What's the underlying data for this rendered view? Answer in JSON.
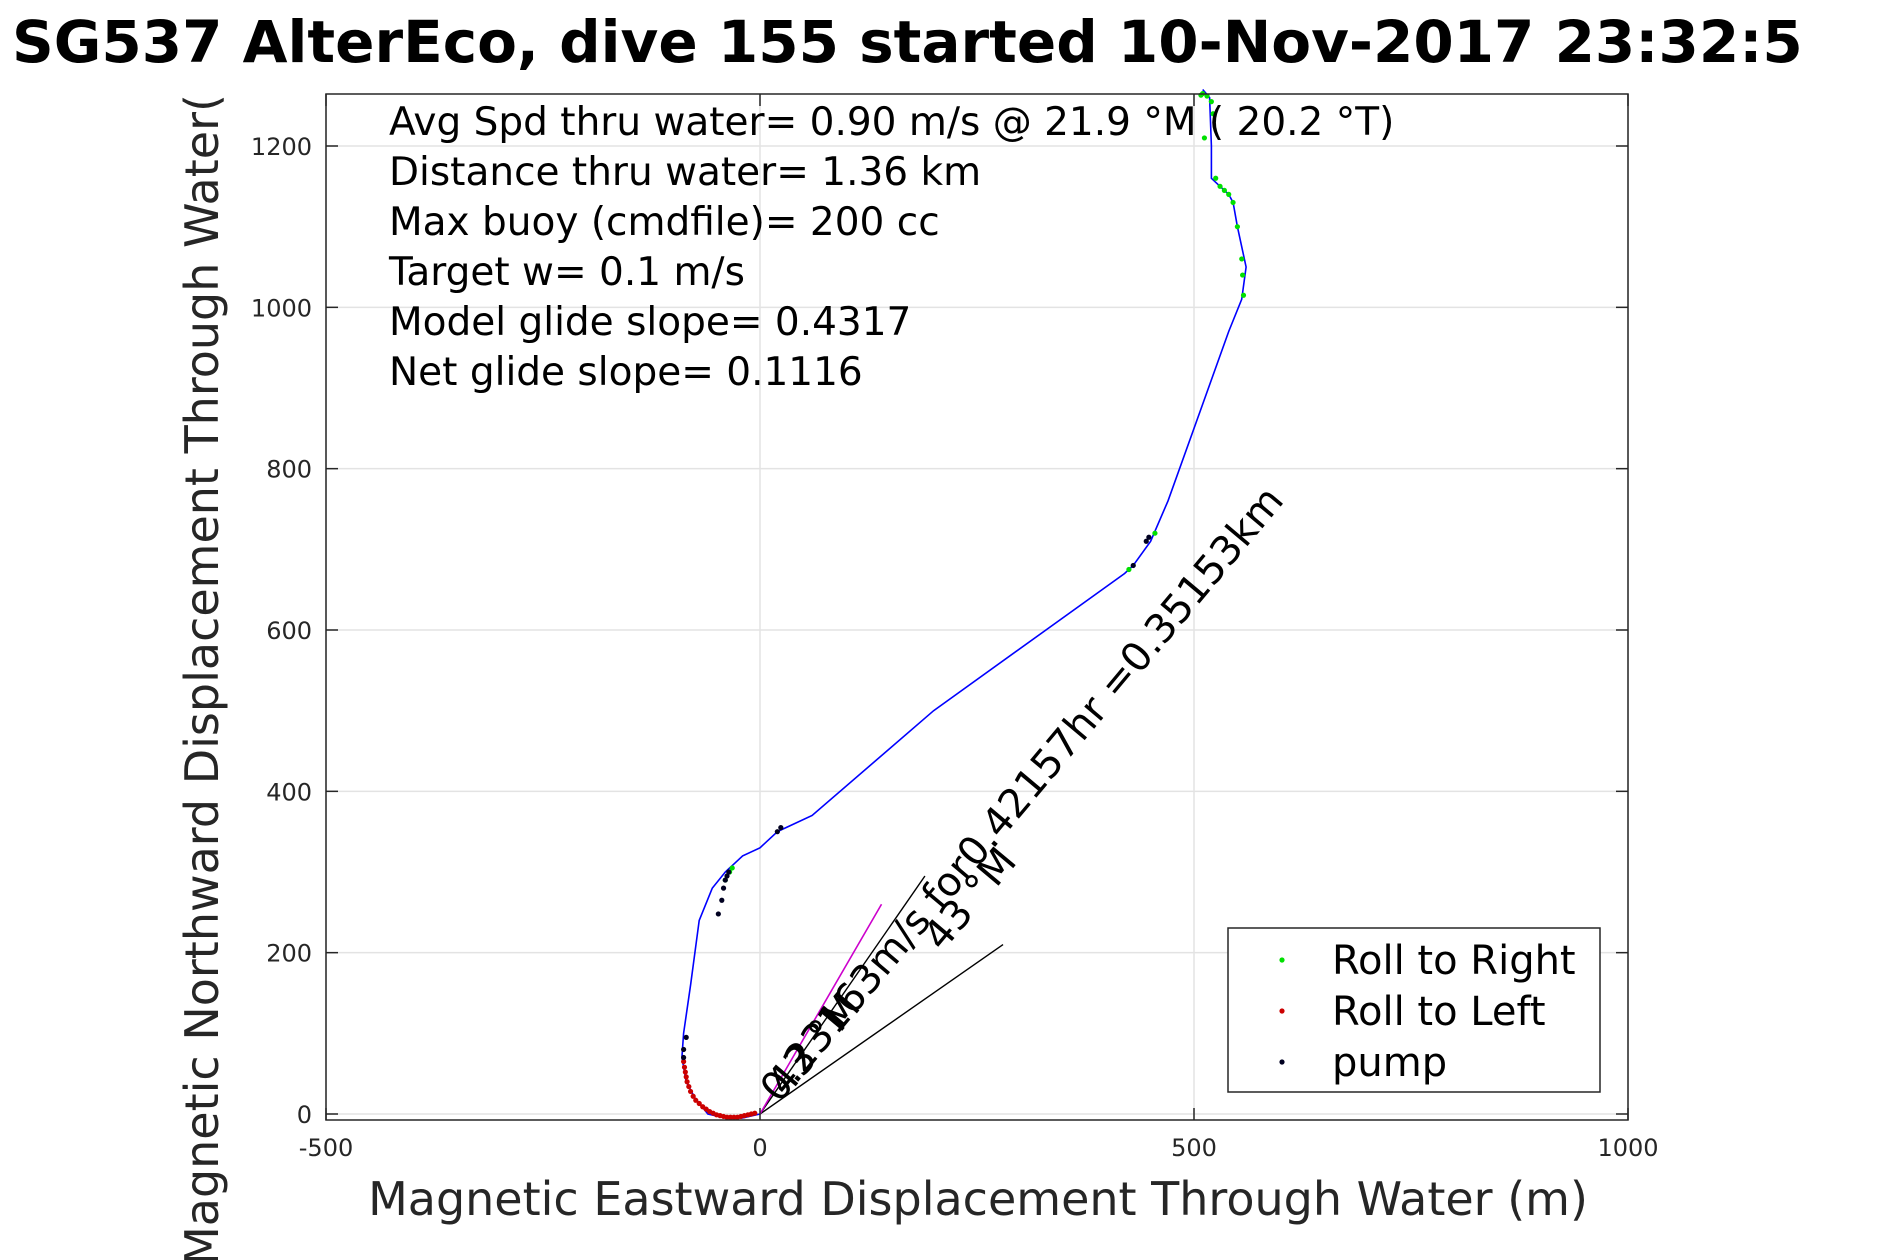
{
  "chart_data": {
    "type": "line",
    "title": "SG537 AlterEco, dive 155 started 10-Nov-2017 23:32:5",
    "xlabel": "Magnetic Eastward Displacement Through Water (m)",
    "ylabel": "Magnetic Northward Displacement Through Water(",
    "xlim": [
      -500,
      1000
    ],
    "ylim": [
      0,
      1260
    ],
    "x_ticks": [
      -500,
      0,
      500,
      1000
    ],
    "x_tick_labels": [
      "-500",
      "0",
      "500",
      "1000"
    ],
    "y_ticks": [
      0,
      200,
      400,
      600,
      800,
      1000,
      1200
    ],
    "y_tick_labels": [
      "0",
      "200",
      "400",
      "600",
      "800",
      "1000",
      "1200"
    ],
    "grid": true,
    "stats": [
      "Avg Spd thru water=  0.90 m/s @  21.9 °M ( 20.2 °T)",
      "Distance thru water=  1.36 km",
      "Max buoy (cmdfile)= 200 cc",
      "Target w= 0.1 m/s",
      "Model glide slope= 0.4317",
      "Net glide slope= 0.1116"
    ],
    "track": {
      "color": "#0000ff",
      "x": [
        0,
        -20,
        -40,
        -60,
        -75,
        -85,
        -90,
        -88,
        -80,
        -70,
        -55,
        -40,
        -35,
        -30,
        -20,
        0,
        20,
        30,
        60,
        200,
        420,
        430,
        450,
        470,
        510,
        540,
        555,
        560,
        550,
        545,
        540,
        530,
        520,
        520,
        518,
        510
      ],
      "y": [
        0,
        -5,
        -5,
        0,
        20,
        40,
        70,
        100,
        160,
        240,
        280,
        300,
        305,
        310,
        320,
        330,
        350,
        355,
        370,
        500,
        670,
        680,
        710,
        760,
        880,
        970,
        1010,
        1050,
        1100,
        1130,
        1140,
        1150,
        1160,
        1200,
        1260,
        1270
      ]
    },
    "heading_line": {
      "color": "#cc00cc",
      "x": [
        0,
        140
      ],
      "y": [
        0,
        260
      ]
    },
    "cone_lines": {
      "color": "#000000",
      "lines": [
        {
          "x": [
            0,
            190
          ],
          "y": [
            0,
            295
          ]
        },
        {
          "x": [
            0,
            280
          ],
          "y": [
            0,
            210
          ]
        }
      ]
    },
    "series": [
      {
        "name": "Roll to Right",
        "color": "#00e000",
        "x": [
          -40,
          -35,
          -32,
          425,
          455,
          510,
          515,
          520,
          522,
          525,
          530,
          535,
          540,
          545,
          550,
          555,
          556,
          557,
          512,
          508
        ],
        "y": [
          290,
          300,
          305,
          675,
          720,
          1265,
          1262,
          1255,
          1240,
          1160,
          1150,
          1145,
          1140,
          1130,
          1100,
          1060,
          1040,
          1015,
          1210,
          1263
        ]
      },
      {
        "name": "Roll to Left",
        "color": "#cc0000",
        "x": [
          -88,
          -87,
          -86,
          -85,
          -84,
          -82,
          -80,
          -77,
          -74,
          -70,
          -66,
          -62,
          -58,
          -54,
          -50,
          -46,
          -42,
          -38,
          -34,
          -30,
          -26,
          -22,
          -18,
          -14,
          -10,
          -6
        ],
        "y": [
          65,
          58,
          52,
          46,
          40,
          34,
          28,
          22,
          17,
          13,
          9,
          6,
          3,
          1,
          -1,
          -2,
          -3,
          -4,
          -4,
          -4,
          -4,
          -3,
          -2,
          -1,
          0,
          1
        ]
      },
      {
        "name": "pump",
        "color": "#000020",
        "x": [
          -85,
          -88,
          -88,
          -48,
          -44,
          -42,
          -40,
          -38,
          -36,
          20,
          24,
          430,
          445,
          448
        ],
        "y": [
          95,
          80,
          70,
          248,
          265,
          280,
          290,
          295,
          300,
          350,
          355,
          680,
          710,
          715
        ]
      }
    ],
    "annotations": [
      {
        "text": "0.23163m/s for0.42157hr =0.35153km",
        "x": 22,
        "y": 12,
        "angle": -50
      },
      {
        "text": "43 °M",
        "x": 30,
        "y": 20,
        "angle": -50
      },
      {
        "text": "43 °M",
        "x": 210,
        "y": 200,
        "angle": -50
      }
    ],
    "legend": {
      "position": "bottom-right",
      "entries": [
        "Roll to Right",
        "Roll to Left",
        "pump"
      ]
    }
  }
}
